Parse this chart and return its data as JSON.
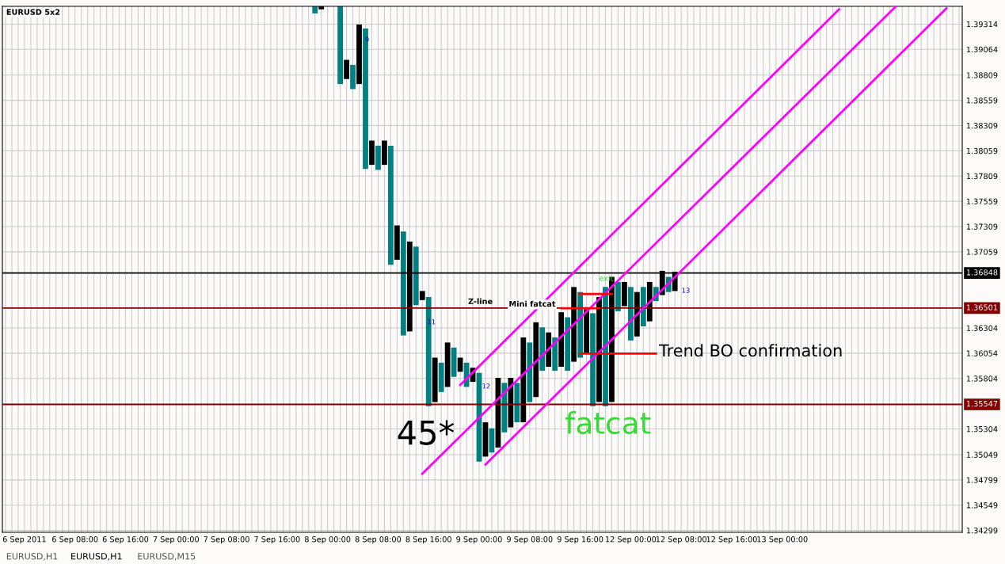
{
  "chart_data": {
    "type": "bar",
    "title": "EURUSD 5x2",
    "categories": [
      null,
      null,
      null,
      "6 Sep 2011",
      null,
      null,
      null,
      null,
      null,
      null,
      null,
      "6 Sep 08:00",
      null,
      null,
      null,
      null,
      null,
      null,
      null,
      "6 Sep 16:00",
      null,
      null,
      null,
      null,
      null,
      null,
      null,
      "7 Sep 00:00",
      null,
      null,
      null,
      null,
      null,
      null,
      null,
      "7 Sep 08:00",
      null,
      null,
      null,
      null,
      null,
      null,
      null,
      "7 Sep 16:00",
      null,
      null,
      null,
      null,
      null,
      null,
      null,
      "8 Sep 00:00",
      null,
      null,
      null,
      null,
      null,
      null,
      null,
      "8 Sep 08:00",
      null,
      null,
      null,
      null,
      null,
      null,
      null,
      "8 Sep 16:00",
      null,
      null,
      null,
      null,
      null,
      null,
      null,
      "9 Sep 00:00",
      null,
      null,
      null,
      null,
      null,
      null,
      null,
      "9 Sep 08:00",
      null,
      null,
      null,
      null,
      null,
      null,
      null,
      "9 Sep 16:00",
      null,
      null,
      null,
      null,
      null,
      null,
      null,
      "12 Sep 00:00",
      null,
      null,
      null,
      null,
      null,
      null,
      null,
      "12 Sep 08:00",
      null,
      null,
      null,
      null,
      null,
      null,
      null,
      "12 Sep 16:00",
      null,
      null,
      null,
      null,
      null,
      null,
      null,
      "13 Sep 00:00",
      null,
      null,
      null,
      null,
      null,
      null,
      null,
      null,
      null,
      null,
      null,
      null,
      null,
      null,
      null,
      null,
      null,
      null,
      null,
      null,
      null,
      null,
      null,
      null,
      null,
      null,
      null,
      null
    ],
    "series": [
      {
        "values": [
          null,
          null,
          null,
          null,
          null,
          null,
          null,
          null,
          null,
          null,
          null,
          null,
          null,
          null,
          null,
          null,
          null,
          null,
          null,
          null,
          null,
          null,
          null,
          null,
          null,
          null,
          null,
          null,
          null,
          null,
          null,
          null,
          null,
          null,
          null,
          null,
          null,
          null,
          null,
          null,
          null,
          null,
          null,
          null,
          null,
          null,
          null,
          null,
          null,
          0.0007,
          0.0003,
          null,
          null,
          0.0077,
          0.0019,
          0.0024,
          0.0059,
          0.0139,
          0.0024,
          0.0024,
          0.0024,
          0.0118,
          0.0034,
          0.0103,
          0.0089,
          0.0058,
          0.0009,
          0.0108,
          0.0044,
          0.0029,
          0.0044,
          0.0029,
          0.0014,
          0.0024,
          0.0014,
          0.0088,
          0.0034,
          0.0024,
          0.0069,
          0.0049,
          0.0049,
          0.0039,
          0.0084,
          0.0059,
          0.0074,
          0.0043,
          0.0034,
          0.0033,
          0.0054,
          0.0053,
          0.0074,
          0.0065,
          0.0043,
          0.0092,
          0.0104,
          0.0118,
          0.0124,
          0.0029,
          0.0024,
          0.0053,
          0.0044,
          0.0039,
          0.0039,
          0.0014,
          0.0024,
          0.0015,
          0.0019,
          null,
          null,
          null,
          null,
          null,
          null,
          null,
          null,
          null,
          null,
          null,
          null,
          null,
          null,
          null,
          null,
          null,
          null,
          null,
          null,
          null,
          null,
          null,
          null,
          null,
          null,
          null,
          null,
          null,
          null,
          null,
          null,
          null,
          null,
          null,
          null,
          null,
          null,
          null,
          null,
          null,
          null,
          null,
          null,
          null
        ],
        "base": [
          null,
          null,
          null,
          null,
          null,
          null,
          null,
          null,
          null,
          null,
          null,
          null,
          null,
          null,
          null,
          null,
          null,
          null,
          null,
          null,
          null,
          null,
          null,
          null,
          null,
          null,
          null,
          null,
          null,
          null,
          null,
          null,
          null,
          null,
          null,
          null,
          null,
          null,
          null,
          null,
          null,
          null,
          null,
          null,
          null,
          null,
          null,
          null,
          null,
          1.3942,
          1.3946,
          null,
          null,
          1.3872,
          1.3877,
          1.3867,
          1.3872,
          1.3788,
          1.3792,
          1.3787,
          1.3792,
          1.3693,
          1.3698,
          1.3623,
          1.3627,
          1.3653,
          1.3658,
          1.3553,
          1.3557,
          1.3567,
          1.3572,
          1.3582,
          1.3587,
          1.3572,
          1.3577,
          1.3498,
          1.3503,
          1.3507,
          1.3512,
          1.3527,
          1.3532,
          1.3537,
          1.3537,
          1.3557,
          1.3562,
          1.3588,
          1.3592,
          1.3588,
          1.3592,
          1.3588,
          1.3597,
          1.3601,
          1.3606,
          1.3553,
          1.3557,
          1.3553,
          1.3557,
          1.3647,
          1.3652,
          1.3618,
          1.3622,
          1.3632,
          1.3637,
          1.3657,
          1.3663,
          1.3666,
          1.3667,
          null,
          null,
          null,
          null,
          null,
          null,
          null,
          null,
          null,
          null,
          null,
          null,
          null,
          null,
          null,
          null,
          null,
          null,
          null,
          null,
          null,
          null,
          null,
          null,
          null,
          null,
          null,
          null,
          null,
          null,
          null,
          null,
          null,
          null,
          null,
          null,
          null,
          null,
          null,
          null,
          null,
          null,
          null,
          null,
          null
        ],
        "colors": [
          null,
          null,
          null,
          null,
          null,
          null,
          null,
          null,
          null,
          null,
          null,
          null,
          null,
          null,
          null,
          null,
          null,
          null,
          null,
          null,
          null,
          null,
          null,
          null,
          null,
          null,
          null,
          null,
          null,
          null,
          null,
          null,
          null,
          null,
          null,
          null,
          null,
          null,
          null,
          null,
          null,
          null,
          null,
          null,
          null,
          null,
          null,
          null,
          null,
          "#008080",
          "#000000",
          null,
          null,
          "#008080",
          "#000000",
          "#008080",
          "#000000",
          "#008080",
          "#000000",
          "#008080",
          "#000000",
          "#008080",
          "#000000",
          "#008080",
          "#000000",
          "#008080",
          "#000000",
          "#008080",
          "#000000",
          "#008080",
          "#000000",
          "#008080",
          "#000000",
          "#008080",
          "#000000",
          "#008080",
          "#000000",
          "#008080",
          "#000000",
          "#008080",
          "#000000",
          "#008080",
          "#000000",
          "#008080",
          "#000000",
          "#008080",
          "#000000",
          "#008080",
          "#000000",
          "#008080",
          "#000000",
          "#008080",
          "#000000",
          "#008080",
          "#000000",
          "#008080",
          "#000000",
          "#008080",
          "#000000",
          "#008080",
          "#000000",
          "#008080",
          "#000000",
          "#008080",
          "#000000",
          "#008080",
          "#000000",
          null,
          null,
          null,
          null,
          null,
          null,
          null,
          null,
          null,
          null,
          null,
          null,
          null,
          null,
          null,
          null,
          null,
          null,
          null,
          null,
          null,
          null,
          null,
          null,
          null,
          null,
          null,
          null,
          null,
          null,
          null,
          null,
          null,
          null,
          null,
          null,
          null,
          null,
          null,
          null,
          null,
          null,
          null,
          null,
          null
        ]
      },
      {
        "type": "line",
        "color": "#ff00ff",
        "values": [
          null,
          null,
          null,
          null,
          null,
          null,
          null,
          null,
          null,
          null,
          null,
          null,
          null,
          null,
          null,
          null,
          null,
          null,
          null,
          null,
          null,
          null,
          null,
          null,
          null,
          null,
          null,
          null,
          null,
          null,
          null,
          null,
          null,
          null,
          null,
          null,
          null,
          null,
          null,
          null,
          null,
          null,
          null,
          null,
          null,
          null,
          null,
          null,
          null,
          null,
          null,
          null,
          null,
          null,
          null,
          null,
          null,
          null,
          null,
          null,
          null,
          null,
          null,
          null,
          null,
          null,
          null,
          null,
          null,
          null,
          null,
          null,
          1.3574,
          null,
          null,
          null,
          null,
          null,
          null,
          null,
          null,
          null,
          null,
          null,
          null,
          null,
          null,
          null,
          null,
          null,
          null,
          null,
          null,
          null,
          null,
          null,
          null,
          null,
          null,
          null,
          null,
          null,
          null,
          null,
          null,
          null,
          null,
          null,
          null,
          null,
          null,
          null,
          null,
          null,
          null,
          null,
          null,
          null,
          null,
          null,
          null,
          null,
          null,
          null,
          null,
          null,
          null,
          null,
          null,
          null,
          null,
          null,
          1.3946,
          null,
          null,
          null,
          null,
          null,
          null,
          null,
          null,
          null,
          null,
          null,
          null,
          null,
          null,
          null,
          null,
          null,
          null,
          null
        ]
      },
      {
        "type": "line",
        "color": "#ff00ff",
        "values": [
          null,
          null,
          null,
          null,
          null,
          null,
          null,
          null,
          null,
          null,
          null,
          null,
          null,
          null,
          null,
          null,
          null,
          null,
          null,
          null,
          null,
          null,
          null,
          null,
          null,
          null,
          null,
          null,
          null,
          null,
          null,
          null,
          null,
          null,
          null,
          null,
          null,
          null,
          null,
          null,
          null,
          null,
          null,
          null,
          null,
          null,
          null,
          null,
          null,
          null,
          null,
          null,
          null,
          null,
          null,
          null,
          null,
          null,
          null,
          null,
          null,
          null,
          null,
          null,
          null,
          null,
          1.3486,
          null,
          null,
          null,
          null,
          null,
          null,
          null,
          null,
          null,
          null,
          null,
          null,
          null,
          null,
          null,
          null,
          null,
          null,
          null,
          null,
          null,
          null,
          null,
          null,
          null,
          null,
          null,
          null,
          null,
          null,
          null,
          null,
          null,
          null,
          null,
          null,
          null,
          null,
          null,
          null,
          null,
          null,
          null,
          null,
          null,
          null,
          null,
          null,
          null,
          null,
          null,
          null,
          null,
          null,
          null,
          null,
          null,
          null,
          null,
          null,
          null,
          null,
          null,
          null,
          null,
          null,
          null,
          null,
          null,
          null,
          null,
          null,
          null,
          null,
          1.3949,
          null,
          null,
          null,
          null,
          null,
          null,
          null,
          null,
          null,
          null
        ]
      },
      {
        "type": "line",
        "color": "#ff00ff",
        "values": [
          null,
          null,
          null,
          null,
          null,
          null,
          null,
          null,
          null,
          null,
          null,
          null,
          null,
          null,
          null,
          null,
          null,
          null,
          null,
          null,
          null,
          null,
          null,
          null,
          null,
          null,
          null,
          null,
          null,
          null,
          null,
          null,
          null,
          null,
          null,
          null,
          null,
          null,
          null,
          null,
          null,
          null,
          null,
          null,
          null,
          null,
          null,
          null,
          null,
          null,
          null,
          null,
          null,
          null,
          null,
          null,
          null,
          null,
          null,
          null,
          null,
          null,
          null,
          null,
          null,
          null,
          null,
          null,
          null,
          null,
          null,
          null,
          null,
          null,
          null,
          null,
          1.3495,
          null,
          null,
          null,
          null,
          null,
          null,
          null,
          null,
          null,
          null,
          null,
          null,
          null,
          null,
          null,
          null,
          null,
          null,
          null,
          null,
          null,
          null,
          null,
          null,
          null,
          null,
          null,
          null,
          null,
          null,
          null,
          null,
          null,
          null,
          null,
          null,
          null,
          null,
          null,
          null,
          null,
          null,
          null,
          null,
          null,
          null,
          null,
          null,
          null,
          null,
          null,
          null,
          null,
          null,
          null,
          null,
          null,
          null,
          null,
          null,
          null,
          null,
          null,
          null,
          null,
          null,
          null,
          null,
          null,
          null,
          null,
          null,
          1.3947,
          null,
          null
        ]
      },
      {
        "type": "line",
        "color": "#ff0000",
        "values": [
          null,
          null,
          null,
          null,
          null,
          null,
          null,
          null,
          null,
          null,
          null,
          null,
          null,
          null,
          null,
          null,
          null,
          null,
          null,
          null,
          null,
          null,
          null,
          null,
          null,
          null,
          null,
          null,
          null,
          null,
          null,
          null,
          null,
          null,
          null,
          null,
          null,
          null,
          null,
          null,
          null,
          null,
          null,
          null,
          null,
          null,
          null,
          null,
          null,
          null,
          null,
          null,
          null,
          null,
          null,
          null,
          null,
          null,
          null,
          null,
          null,
          null,
          null,
          null,
          null,
          null,
          null,
          null,
          null,
          null,
          null,
          null,
          null,
          null,
          null,
          null,
          null,
          null,
          null,
          null,
          null,
          null,
          null,
          null,
          null,
          null,
          null,
          null,
          null,
          null,
          null,
          1.3664,
          null,
          null,
          null,
          null,
          1.3664,
          null,
          null,
          null,
          null,
          null,
          null,
          null,
          null,
          null,
          null,
          null,
          null,
          null,
          null,
          null,
          null,
          null,
          null,
          null,
          null,
          null,
          null,
          null,
          null,
          null,
          null,
          null,
          null,
          null,
          null,
          null,
          null,
          null,
          null,
          null,
          null,
          null,
          null,
          null,
          null,
          null,
          null,
          null,
          null,
          null,
          null,
          null,
          null,
          null,
          null,
          null,
          null,
          null,
          null,
          null
        ]
      },
      {
        "type": "line",
        "color": "#ff0000",
        "values": [
          null,
          null,
          null,
          null,
          null,
          null,
          null,
          null,
          null,
          null,
          null,
          null,
          null,
          null,
          null,
          null,
          null,
          null,
          null,
          null,
          null,
          null,
          null,
          null,
          null,
          null,
          null,
          null,
          null,
          null,
          null,
          null,
          null,
          null,
          null,
          null,
          null,
          null,
          null,
          null,
          null,
          null,
          null,
          null,
          null,
          null,
          null,
          null,
          null,
          null,
          null,
          null,
          null,
          null,
          null,
          null,
          null,
          null,
          null,
          null,
          null,
          null,
          null,
          null,
          null,
          null,
          null,
          null,
          null,
          null,
          null,
          null,
          null,
          null,
          null,
          null,
          null,
          null,
          null,
          null,
          null,
          null,
          null,
          null,
          null,
          null,
          null,
          null,
          1.365,
          null,
          null,
          null,
          null,
          null,
          1.365,
          null,
          null,
          null,
          null,
          null,
          null,
          null,
          null,
          null,
          null,
          null,
          null,
          null,
          null,
          null,
          null,
          null,
          null,
          null,
          null,
          null,
          null,
          null,
          null,
          null,
          null,
          null,
          null,
          null,
          null,
          null,
          null,
          null,
          null,
          null,
          null,
          null,
          null,
          null,
          null,
          null,
          null,
          null,
          null,
          null,
          null,
          null,
          null,
          null,
          null,
          null,
          null,
          null,
          null,
          null,
          null,
          null
        ]
      },
      {
        "type": "line",
        "color": "#ff0000",
        "values": [
          null,
          null,
          null,
          null,
          null,
          null,
          null,
          null,
          null,
          null,
          null,
          null,
          null,
          null,
          null,
          null,
          null,
          null,
          null,
          null,
          null,
          null,
          null,
          null,
          null,
          null,
          null,
          null,
          null,
          null,
          null,
          null,
          null,
          null,
          null,
          null,
          null,
          null,
          null,
          null,
          null,
          null,
          null,
          null,
          null,
          null,
          null,
          null,
          null,
          null,
          null,
          null,
          null,
          null,
          null,
          null,
          null,
          null,
          null,
          null,
          null,
          null,
          null,
          null,
          null,
          null,
          null,
          null,
          null,
          null,
          null,
          null,
          null,
          null,
          null,
          null,
          null,
          null,
          null,
          null,
          null,
          null,
          null,
          null,
          null,
          null,
          null,
          null,
          null,
          null,
          null,
          1.3605,
          null,
          null,
          null,
          null,
          null,
          null,
          null,
          null,
          null,
          null,
          null,
          1.3605,
          null,
          null,
          null,
          null,
          null,
          null,
          null,
          null,
          null,
          null,
          null,
          null,
          null,
          null,
          null,
          null,
          null,
          null,
          null,
          null,
          null,
          null,
          null,
          null,
          null,
          null,
          null,
          null,
          null,
          null,
          null,
          null,
          null,
          null,
          null,
          null,
          null,
          null,
          null,
          null,
          null,
          null,
          null,
          null,
          null,
          null,
          null,
          null
        ]
      }
    ],
    "ylim": [
      1.3428,
      1.3949
    ],
    "yticks": [
      1.34299,
      1.34549,
      1.34799,
      1.35049,
      1.35304,
      1.35804,
      1.36054,
      1.36304,
      1.37059,
      1.37309,
      1.37559,
      1.37809,
      1.38059,
      1.38309,
      1.38559,
      1.38809,
      1.39064,
      1.39314
    ],
    "ref_lines": [
      {
        "axis": "y",
        "value": 1.36848,
        "label": "1.36848",
        "color": "#000000"
      },
      {
        "axis": "y",
        "value": 1.36501,
        "label": "1.36501",
        "color": "#800000"
      },
      {
        "axis": "y",
        "value": 1.35547,
        "label": "1.35547",
        "color": "#800000"
      }
    ],
    "annotations": [
      "Z-line",
      {
        "text": "Mini fatcat",
        "y": 1.365
      },
      "exit",
      "Trend BO confirmation",
      "45*",
      "fatcat",
      "9",
      "11",
      "12",
      "13",
      "EURUSD,H1",
      "EURUSD,H1",
      "EURUSD,M15"
    ],
    "grid": true,
    "legend": false
  }
}
